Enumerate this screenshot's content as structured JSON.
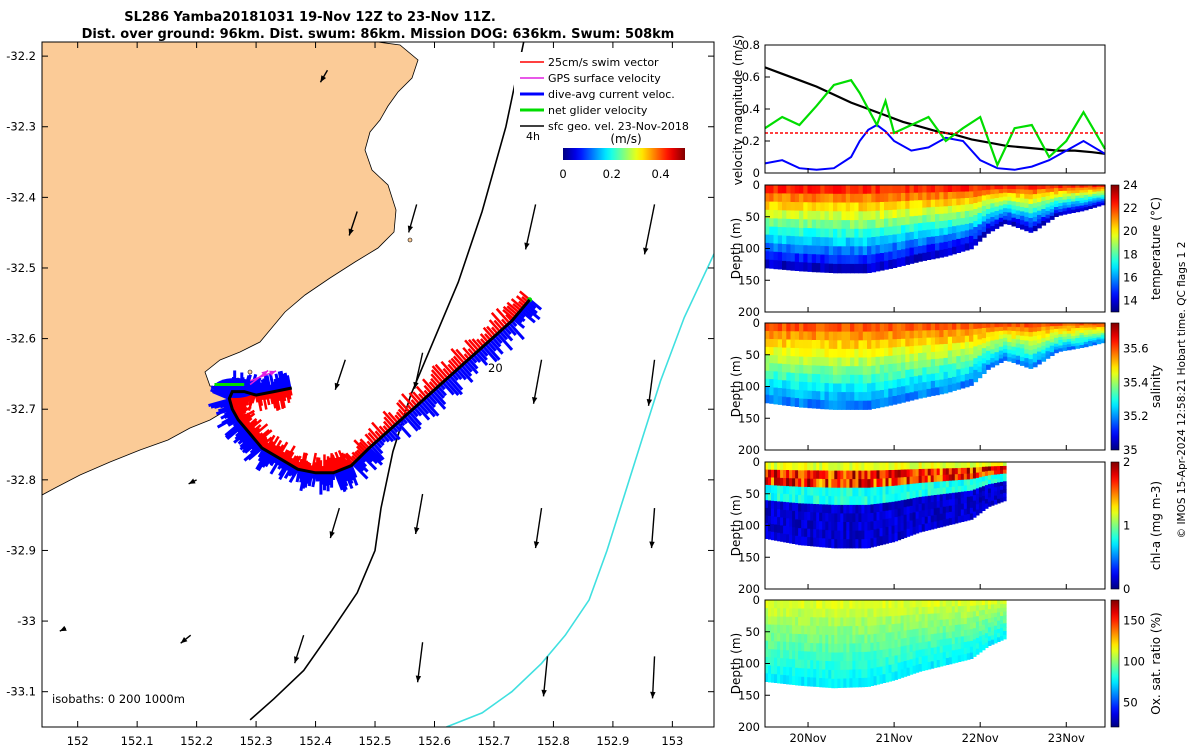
{
  "title": {
    "line1": "SL286 Yamba20181031 19-Nov 12Z to 23-Nov 11Z.",
    "line2": "Dist. over ground: 96km. Dist. swum: 86km. Mission DOG: 636km. Swum: 508km"
  },
  "side_note": "© IMOS 15-Apr-2024 12:58:21 Hobart time. QC flags 1  2",
  "colors": {
    "land": "#FBCB97",
    "isobath_200": "#000000",
    "isobath_1000": "#40E0E0",
    "swim_vector": "#FF0000",
    "gps_velocity": "#E020E0",
    "dive_avg": "#0000FF",
    "net_glider": "#00DD00",
    "sfc_geo": "#000000"
  },
  "map": {
    "legend": [
      {
        "label": "25cm/s swim vector",
        "key": "swim_vector"
      },
      {
        "label": "GPS surface velocity",
        "key": "gps_velocity"
      },
      {
        "label": "dive-avg current veloc.",
        "key": "dive_avg"
      },
      {
        "label": "net glider velocity",
        "key": "net_glider"
      },
      {
        "label": "sfc geo. vel. 23-Nov-2018",
        "key": "sfc_geo"
      }
    ],
    "colorbar_unit": "(m/s)",
    "colorbar_ticks": [
      "0",
      "0.2",
      "0.4"
    ],
    "colorbar_range": [
      0,
      0.5
    ],
    "isobaths_text": "isobaths: 0   200  1000m",
    "time_labels": [
      "4h",
      "20"
    ]
  },
  "chart_data": [
    {
      "type": "line",
      "panel": "map",
      "title": "SL286 Yamba20181031 19-Nov 12Z to 23-Nov 11Z.",
      "x_ticks": [
        "152",
        "152.1",
        "152.2",
        "152.3",
        "152.4",
        "152.5",
        "152.6",
        "152.7",
        "152.8",
        "152.9",
        "153"
      ],
      "y_ticks": [
        "-32.2",
        "-32.3",
        "-32.4",
        "-32.5",
        "-32.6",
        "-32.7",
        "-32.8",
        "-32.9",
        "-33",
        "-33.1"
      ],
      "xlim": [
        151.94,
        153.07
      ],
      "ylim": [
        -33.15,
        -32.18
      ],
      "series": [
        {
          "name": "glider track",
          "lon": [
            152.76,
            152.73,
            152.69,
            152.65,
            152.61,
            152.57,
            152.53,
            152.49,
            152.46,
            152.43,
            152.4,
            152.37,
            152.34,
            152.31,
            152.29,
            152.27,
            152.26,
            152.255,
            152.26,
            152.28,
            152.3,
            152.33,
            152.36
          ],
          "lat": [
            -32.545,
            -32.575,
            -32.605,
            -32.635,
            -32.665,
            -32.695,
            -32.725,
            -32.755,
            -32.78,
            -32.79,
            -32.79,
            -32.785,
            -32.77,
            -32.755,
            -32.735,
            -32.715,
            -32.7,
            -32.685,
            -32.675,
            -32.675,
            -32.68,
            -32.675,
            -32.67
          ]
        },
        {
          "name": "isobath 200 m",
          "lon": [
            152.75,
            152.72,
            152.68,
            152.64,
            152.6,
            152.56,
            152.53,
            152.51,
            152.5,
            152.47,
            152.43,
            152.38,
            152.33,
            152.29
          ],
          "lat": [
            -32.18,
            -32.3,
            -32.42,
            -32.52,
            -32.6,
            -32.68,
            -32.76,
            -32.84,
            -32.9,
            -32.96,
            -33.01,
            -33.07,
            -33.11,
            -33.14
          ]
        },
        {
          "name": "isobath 1000 m",
          "lon": [
            153.07,
            153.02,
            152.98,
            152.95,
            152.92,
            152.89,
            152.86,
            152.82,
            152.78,
            152.73,
            152.68,
            152.62
          ],
          "lat": [
            -32.48,
            -32.57,
            -32.66,
            -32.74,
            -32.82,
            -32.9,
            -32.97,
            -33.02,
            -33.06,
            -33.1,
            -33.13,
            -33.15
          ]
        }
      ]
    },
    {
      "type": "line",
      "panel": "velocity",
      "ylabel": "velocity magnitude (m/s)",
      "ylim": [
        0,
        0.8
      ],
      "y_ticks": [
        "0",
        "0.2",
        "0.4",
        "0.6",
        "0.8"
      ],
      "xlim": [
        19.5,
        23.45
      ],
      "series": [
        {
          "name": "sfc geo",
          "x": [
            19.5,
            19.7,
            19.9,
            20.1,
            20.3,
            20.5,
            20.7,
            20.9,
            21.1,
            21.3,
            21.5,
            21.7,
            21.9,
            22.1,
            22.3,
            22.5,
            22.7,
            22.9,
            23.1,
            23.3,
            23.45
          ],
          "y": [
            0.66,
            0.62,
            0.58,
            0.54,
            0.49,
            0.44,
            0.4,
            0.36,
            0.32,
            0.29,
            0.26,
            0.24,
            0.21,
            0.19,
            0.17,
            0.16,
            0.15,
            0.14,
            0.14,
            0.13,
            0.12
          ]
        },
        {
          "name": "dive-avg",
          "x": [
            19.5,
            19.7,
            19.9,
            20.1,
            20.3,
            20.5,
            20.6,
            20.7,
            20.8,
            20.9,
            21.0,
            21.2,
            21.4,
            21.6,
            21.8,
            22.0,
            22.2,
            22.4,
            22.6,
            22.8,
            23.0,
            23.2,
            23.45
          ],
          "y": [
            0.06,
            0.08,
            0.03,
            0.02,
            0.03,
            0.1,
            0.2,
            0.27,
            0.3,
            0.26,
            0.2,
            0.14,
            0.16,
            0.22,
            0.2,
            0.08,
            0.03,
            0.02,
            0.04,
            0.08,
            0.14,
            0.2,
            0.12
          ]
        },
        {
          "name": "net glider",
          "x": [
            19.5,
            19.7,
            19.9,
            20.1,
            20.3,
            20.5,
            20.6,
            20.7,
            20.8,
            20.9,
            21.0,
            21.2,
            21.4,
            21.6,
            21.8,
            22.0,
            22.2,
            22.4,
            22.6,
            22.8,
            23.0,
            23.2,
            23.45
          ],
          "y": [
            0.28,
            0.35,
            0.3,
            0.42,
            0.55,
            0.58,
            0.5,
            0.4,
            0.3,
            0.45,
            0.25,
            0.3,
            0.35,
            0.2,
            0.28,
            0.35,
            0.05,
            0.28,
            0.3,
            0.1,
            0.2,
            0.38,
            0.15
          ]
        },
        {
          "name": "swim 0.25",
          "x": [
            19.5,
            23.45
          ],
          "y": [
            0.25,
            0.25
          ]
        }
      ]
    },
    {
      "type": "heatmap",
      "panel": "temperature",
      "ylabel": "Depth (m)",
      "y_ticks": [
        "0",
        "50",
        "100",
        "150",
        "200"
      ],
      "colorbar_label": "temperature (°C)",
      "colorbar_ticks": [
        "14",
        "16",
        "18",
        "20",
        "22",
        "24"
      ],
      "clim": [
        13,
        24
      ],
      "xlim": [
        19.5,
        23.45
      ],
      "data_end": 23.45,
      "bottom_depth_x": [
        19.5,
        19.9,
        20.3,
        20.7,
        21.0,
        21.3,
        21.6,
        21.9,
        22.1,
        22.3,
        22.6,
        22.9,
        23.2,
        23.45
      ],
      "bottom_depth_y": [
        130,
        135,
        138,
        138,
        130,
        120,
        112,
        100,
        75,
        60,
        75,
        48,
        40,
        30
      ]
    },
    {
      "type": "heatmap",
      "panel": "salinity",
      "ylabel": "Depth (m)",
      "y_ticks": [
        "0",
        "50",
        "100",
        "150",
        "200"
      ],
      "colorbar_label": "salinity",
      "colorbar_ticks": [
        "35",
        "35.2",
        "35.4",
        "35.6"
      ],
      "clim": [
        35,
        35.75
      ],
      "xlim": [
        19.5,
        23.45
      ],
      "data_end": 23.45,
      "bottom_depth_x": [
        19.5,
        19.9,
        20.3,
        20.7,
        21.0,
        21.3,
        21.6,
        21.9,
        22.1,
        22.3,
        22.6,
        22.9,
        23.2,
        23.45
      ],
      "bottom_depth_y": [
        125,
        132,
        136,
        136,
        128,
        118,
        110,
        98,
        72,
        58,
        72,
        45,
        38,
        30
      ]
    },
    {
      "type": "heatmap",
      "panel": "chl-a",
      "ylabel": "Depth (m)",
      "y_ticks": [
        "0",
        "50",
        "100",
        "150",
        "200"
      ],
      "colorbar_label": "chl-a (mg m-3)",
      "colorbar_ticks": [
        "0",
        "1",
        "2"
      ],
      "clim": [
        0,
        2
      ],
      "xlim": [
        19.5,
        23.45
      ],
      "data_end": 22.3,
      "bottom_depth_x": [
        19.5,
        19.9,
        20.3,
        20.7,
        21.0,
        21.3,
        21.6,
        21.9,
        22.1,
        22.3
      ],
      "bottom_depth_y": [
        120,
        130,
        135,
        135,
        125,
        110,
        100,
        90,
        70,
        60
      ]
    },
    {
      "type": "heatmap",
      "panel": "oxygen",
      "ylabel": "Depth (m)",
      "y_ticks": [
        "0",
        "50",
        "100",
        "150",
        "200"
      ],
      "colorbar_label": "Ox. sat. ratio (%)",
      "colorbar_ticks": [
        "50",
        "100",
        "150"
      ],
      "clim": [
        20,
        175
      ],
      "xlim": [
        19.5,
        23.45
      ],
      "data_end": 22.3,
      "bottom_depth_x": [
        19.5,
        19.9,
        20.3,
        20.7,
        21.0,
        21.3,
        21.6,
        21.9,
        22.1,
        22.3
      ],
      "bottom_depth_y": [
        128,
        134,
        138,
        136,
        126,
        112,
        102,
        92,
        72,
        60
      ]
    }
  ],
  "time_axis": {
    "tick_labels": [
      "20Nov",
      "21Nov",
      "22Nov",
      "23Nov"
    ],
    "tick_values": [
      20,
      21,
      22,
      23
    ]
  }
}
